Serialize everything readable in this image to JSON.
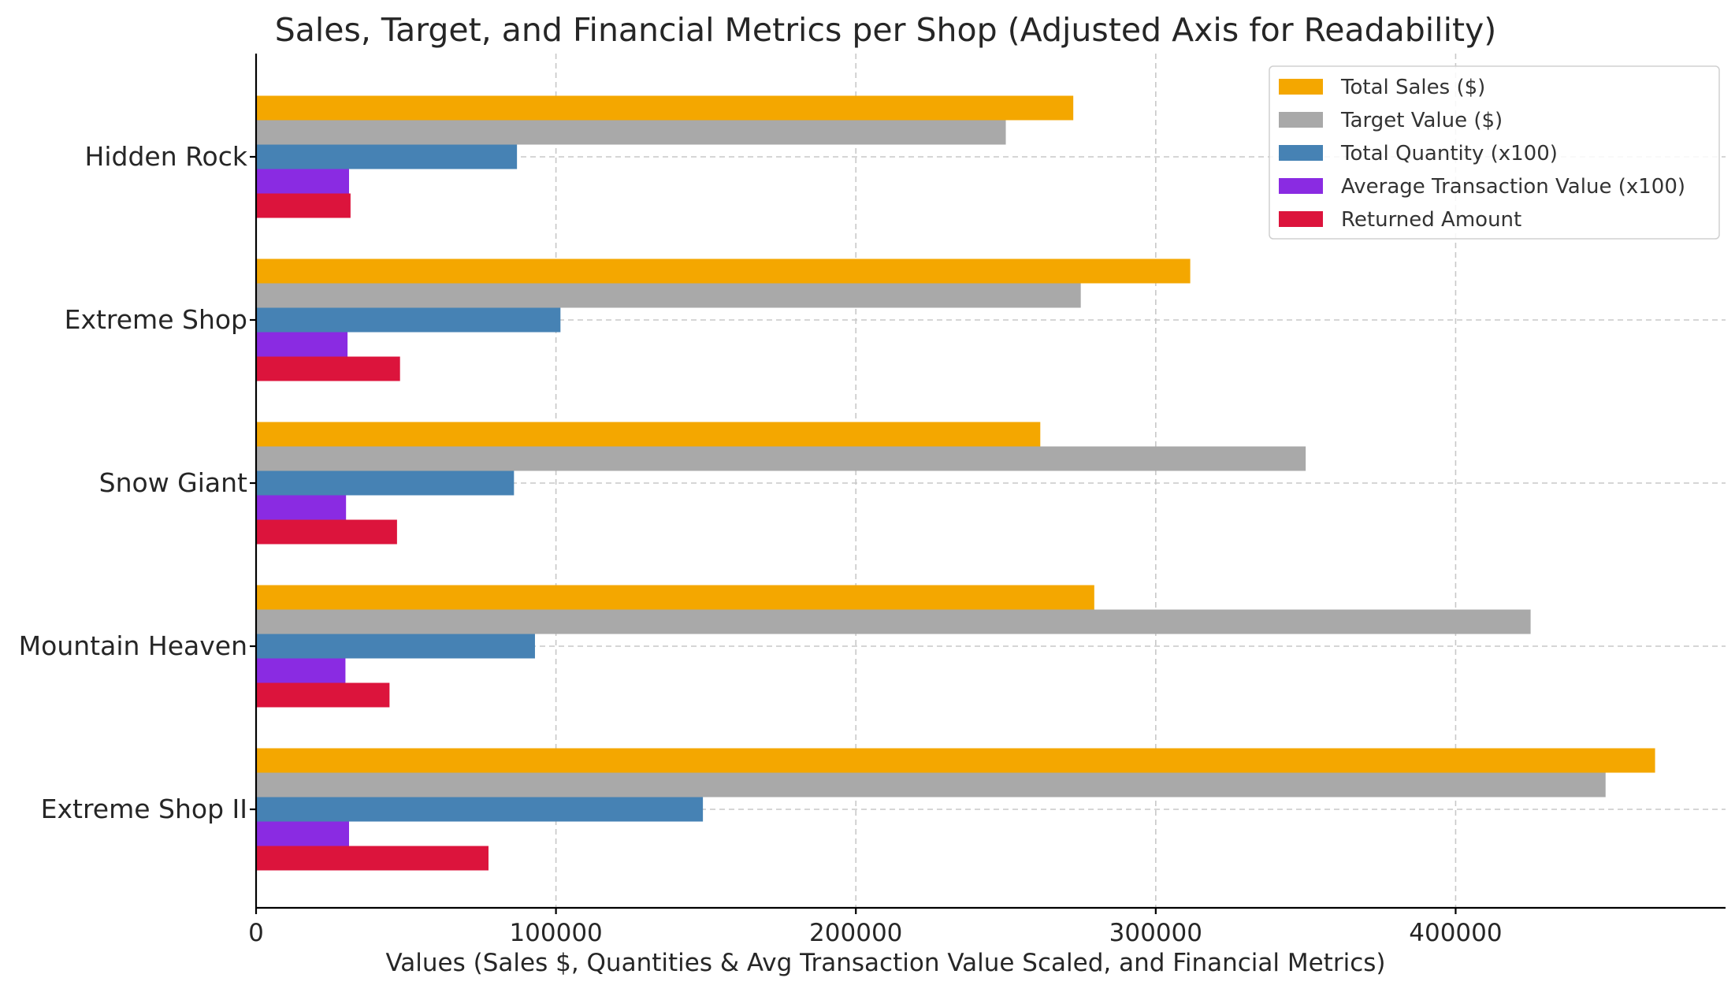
{
  "colors": {
    "total_sales": "#f4a700",
    "target_value": "#a9a9a9",
    "total_quantity": "#4682b4",
    "avg_transaction": "#8a2be2",
    "returned_amount": "#dc143c"
  },
  "chart_data": {
    "type": "bar",
    "orientation": "horizontal",
    "title": "Sales, Target, and Financial Metrics per Shop (Adjusted Axis for Readability)",
    "xlabel": "Values (Sales $, Quantities & Avg Transaction Value Scaled, and Financial Metrics)",
    "ylabel": "",
    "xlim": [
      0,
      490000
    ],
    "xticks": [
      0,
      100000,
      200000,
      300000,
      400000
    ],
    "xtick_labels": [
      "0",
      "100000",
      "200000",
      "300000",
      "400000"
    ],
    "grid": true,
    "legend_position": "top-right",
    "categories": [
      "Hidden Rock",
      "Extreme Shop",
      "Snow Giant",
      "Mountain Heaven",
      "Extreme Shop II"
    ],
    "series": [
      {
        "name": "Total Sales ($)",
        "color_key": "total_sales",
        "values": [
          272500,
          311500,
          261500,
          279500,
          466500
        ]
      },
      {
        "name": "Target Value ($)",
        "color_key": "target_value",
        "values": [
          250000,
          275000,
          350000,
          425000,
          450000
        ]
      },
      {
        "name": "Total Quantity (x100)",
        "color_key": "total_quantity",
        "values": [
          87000,
          101500,
          86000,
          93000,
          149000
        ]
      },
      {
        "name": "Average Transaction Value (x100)",
        "color_key": "avg_transaction",
        "values": [
          31000,
          30500,
          30000,
          29800,
          31000
        ]
      },
      {
        "name": "Returned Amount",
        "color_key": "returned_amount",
        "values": [
          31500,
          48000,
          47000,
          44500,
          77500
        ]
      }
    ]
  }
}
